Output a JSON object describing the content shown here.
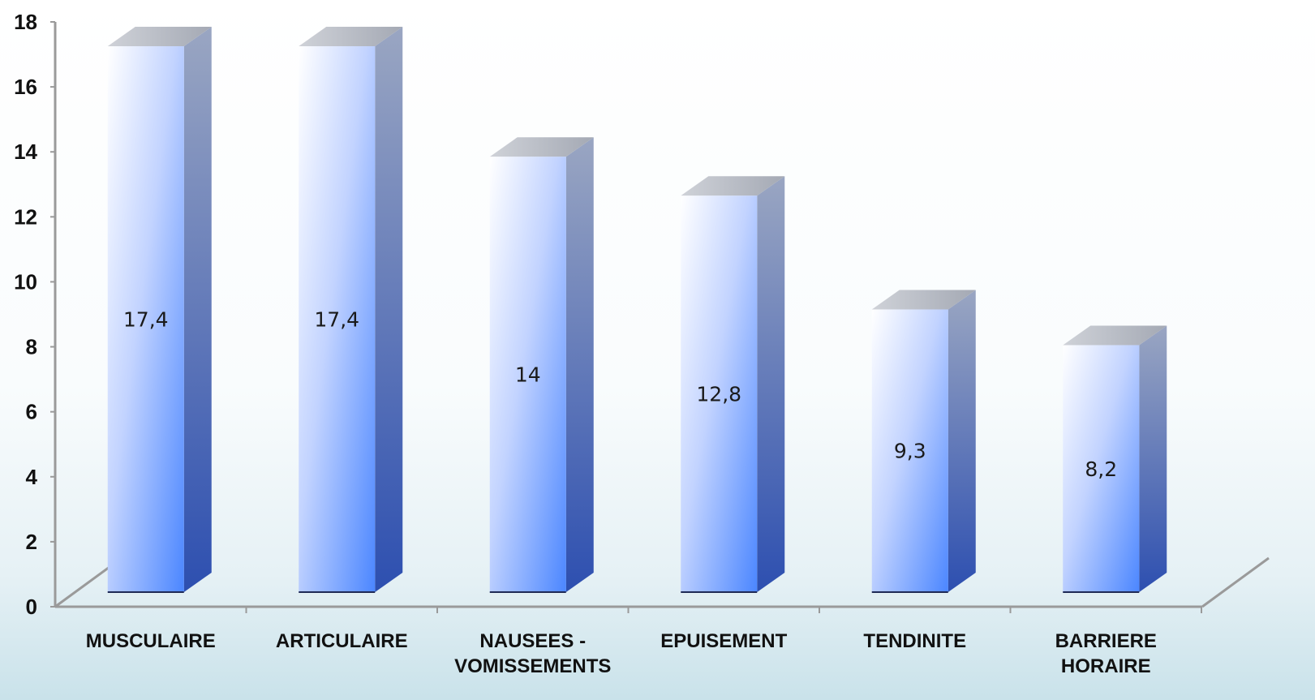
{
  "chart_data": {
    "type": "bar",
    "categories": [
      [
        "MUSCULAIRE"
      ],
      [
        "ARTICULAIRE"
      ],
      [
        "NAUSEES -",
        "VOMISSEMENTS"
      ],
      [
        "EPUISEMENT"
      ],
      [
        "TENDINITE"
      ],
      [
        "BARRIERE",
        "HORAIRE"
      ]
    ],
    "values": [
      17.4,
      17.4,
      14,
      12.8,
      9.3,
      8.2
    ],
    "data_labels": [
      "17,4",
      "17,4",
      "14",
      "12,8",
      "9,3",
      "8,2"
    ],
    "yticks": [
      "0",
      "2",
      "4",
      "6",
      "8",
      "10",
      "12",
      "14",
      "16",
      "18"
    ],
    "ylim": [
      0,
      18
    ],
    "title": "",
    "xlabel": "",
    "ylabel": "",
    "grid": false,
    "legend": "none",
    "style": "3d-column",
    "colors": {
      "front_light": "#ffffff",
      "front_dark": "#4b86ff",
      "side_light": "#9aa6c2",
      "side_dark": "#2d4fb0",
      "top": "#b9bdc6",
      "axis": "#9a9a9a"
    }
  }
}
